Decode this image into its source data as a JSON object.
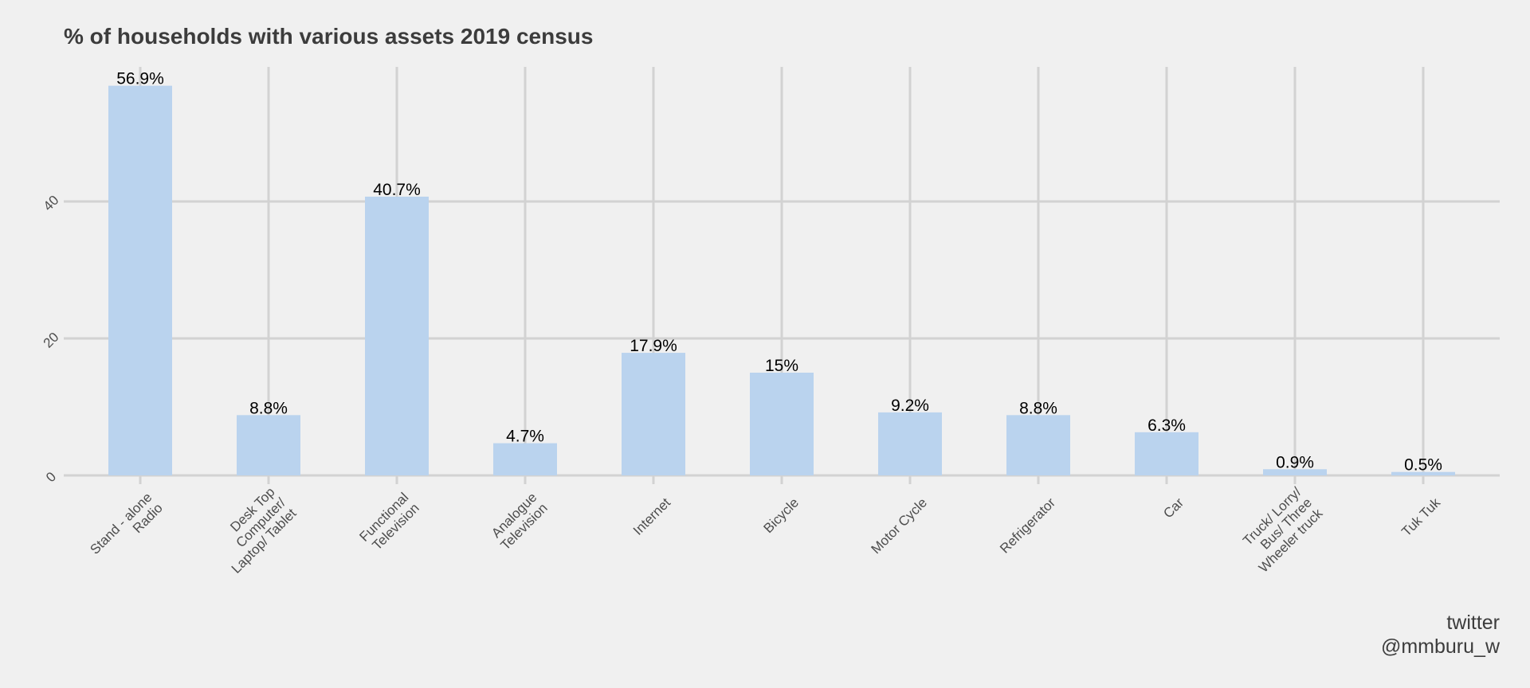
{
  "chart_data": {
    "type": "bar",
    "title": "% of households with various assets 2019 census",
    "xlabel": "",
    "ylabel": "",
    "categories": [
      "Stand - alone Radio",
      "Desk Top Computer/ Laptop/ Tablet",
      "Functional Television",
      "Analogue Television",
      "Internet",
      "Bicycle",
      "Motor Cycle",
      "Refrigerator",
      "Car",
      "Truck/ Lorry/ Bus/ Three Wheeler truck",
      "Tuk Tuk"
    ],
    "category_lines": [
      [
        "Stand - alone",
        "Radio"
      ],
      [
        "Desk Top",
        "Computer/",
        "Laptop/ Tablet"
      ],
      [
        "Functional",
        "Television"
      ],
      [
        "Analogue",
        "Television"
      ],
      [
        "Internet"
      ],
      [
        "Bicycle"
      ],
      [
        "Motor Cycle"
      ],
      [
        "Refrigerator"
      ],
      [
        "Car"
      ],
      [
        "Truck/ Lorry/",
        "Bus/ Three",
        "Wheeler truck"
      ],
      [
        "Tuk Tuk"
      ]
    ],
    "values": [
      56.9,
      8.8,
      40.7,
      4.7,
      17.9,
      15,
      9.2,
      8.8,
      6.3,
      0.9,
      0.5
    ],
    "data_labels": [
      "56.9%",
      "8.8%",
      "40.7%",
      "4.7%",
      "17.9%",
      "15%",
      "9.2%",
      "8.8%",
      "6.3%",
      "0.9%",
      "0.5%"
    ],
    "yticks": [
      0,
      20,
      40
    ],
    "ytick_labels": [
      "0",
      "20",
      "40"
    ],
    "ylim": [
      0,
      59.5
    ],
    "grid": true,
    "colors": {
      "bar": "#bad3ee",
      "grid": "#d2d2d2",
      "background": "#f0f0f0"
    }
  },
  "caption": {
    "line1": "twitter",
    "line2": "@mmburu_w"
  }
}
